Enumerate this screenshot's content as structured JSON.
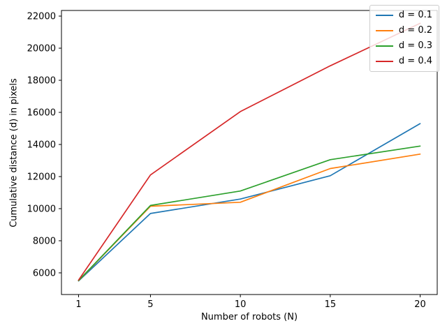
{
  "figure": {
    "background": "#ffffff",
    "text_color": "#000000",
    "spine_color": "#000000"
  },
  "chart_data": {
    "type": "line",
    "title": "",
    "xlabel": "Number of robots (N)",
    "ylabel": "Cumulative distance (d) in pixels",
    "x": [
      1,
      5,
      10,
      15,
      20
    ],
    "series": [
      {
        "name": "d = 0.1",
        "color": "#1f77b4",
        "values": [
          5500,
          9700,
          10600,
          12050,
          15300
        ]
      },
      {
        "name": "d = 0.2",
        "color": "#ff7f0e",
        "values": [
          5510,
          10150,
          10400,
          12500,
          13400
        ]
      },
      {
        "name": "d = 0.3",
        "color": "#2ca02c",
        "values": [
          5520,
          10200,
          11100,
          13050,
          13900
        ]
      },
      {
        "name": "d = 0.4",
        "color": "#d62728",
        "values": [
          5550,
          12100,
          16050,
          18900,
          21550
        ]
      }
    ],
    "xticks": [
      1,
      5,
      10,
      15,
      20
    ],
    "yticks": [
      6000,
      8000,
      10000,
      12000,
      14000,
      16000,
      18000,
      20000,
      22000
    ],
    "xlim": [
      0.05,
      20.95
    ],
    "ylim": [
      4650,
      22350
    ],
    "grid": false,
    "legend_position": "upper right"
  }
}
